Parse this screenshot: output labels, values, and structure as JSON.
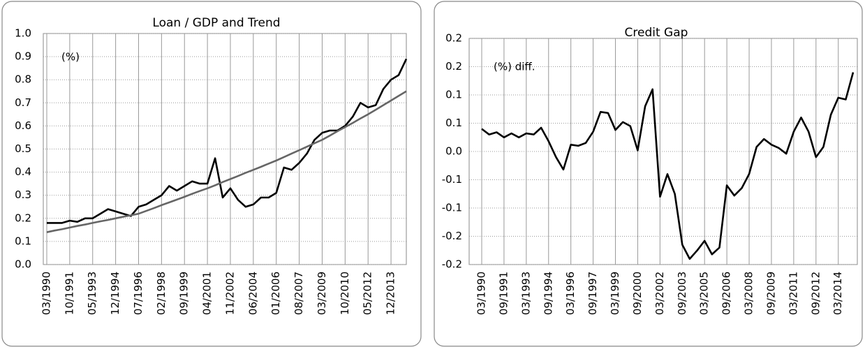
{
  "chart_data": [
    {
      "type": "line",
      "title": "Loan / GDP and  Trend",
      "annotation": "(%)",
      "categories": [
        "03/1990",
        null,
        null,
        "10/1991",
        null,
        null,
        "05/1993",
        null,
        null,
        "12/1994",
        null,
        null,
        "07/1996",
        null,
        null,
        "02/1998",
        null,
        null,
        "09/1999",
        null,
        null,
        "04/2001",
        null,
        null,
        "11/2002",
        null,
        null,
        "06/2004",
        null,
        null,
        "01/2006",
        null,
        null,
        "08/2007",
        null,
        null,
        "03/2009",
        null,
        null,
        "10/2010",
        null,
        null,
        "05/2012",
        null,
        null,
        "12/2013",
        null,
        null
      ],
      "series": [
        {
          "color": "#000000",
          "values": [
            0.18,
            0.18,
            0.18,
            0.19,
            0.185,
            0.2,
            0.2,
            0.22,
            0.24,
            0.23,
            0.22,
            0.21,
            0.25,
            0.26,
            0.28,
            0.3,
            0.34,
            0.32,
            0.34,
            0.36,
            0.35,
            0.35,
            0.46,
            0.29,
            0.33,
            0.28,
            0.25,
            0.26,
            0.29,
            0.29,
            0.31,
            0.42,
            0.41,
            0.44,
            0.48,
            0.54,
            0.57,
            0.58,
            0.58,
            0.6,
            0.64,
            0.7,
            0.68,
            0.69,
            0.76,
            0.8,
            0.82,
            0.89
          ]
        },
        {
          "color": "#666666",
          "values": [
            0.14,
            0.147,
            0.153,
            0.16,
            0.167,
            0.173,
            0.18,
            0.187,
            0.193,
            0.2,
            0.207,
            0.213,
            0.22,
            0.232,
            0.244,
            0.257,
            0.269,
            0.281,
            0.293,
            0.306,
            0.318,
            0.33,
            0.343,
            0.357,
            0.37,
            0.383,
            0.397,
            0.41,
            0.423,
            0.437,
            0.45,
            0.465,
            0.48,
            0.495,
            0.51,
            0.525,
            0.54,
            0.558,
            0.577,
            0.595,
            0.613,
            0.632,
            0.65,
            0.67,
            0.69,
            0.71,
            0.73,
            0.75
          ]
        }
      ],
      "ylim": [
        0,
        1
      ],
      "yticks": [
        {
          "value": 0,
          "label": "0.0"
        },
        0.1,
        0.2,
        0.3,
        0.4,
        0.5,
        0.6,
        0.7,
        0.8,
        0.9,
        {
          "value": 1,
          "label": "1.0"
        }
      ],
      "grid": true
    },
    {
      "type": "line",
      "title": "Credit Gap",
      "annotation": "(%) diff.",
      "categories": [
        "03/1990",
        null,
        null,
        "09/1991",
        null,
        null,
        "03/1993",
        null,
        null,
        "09/1994",
        null,
        null,
        "03/1996",
        null,
        null,
        "09/1997",
        null,
        null,
        "03/1999",
        null,
        null,
        "09/2000",
        null,
        null,
        "03/2002",
        null,
        null,
        "09/2003",
        null,
        null,
        "03/2005",
        null,
        null,
        "09/2006",
        null,
        null,
        "03/2008",
        null,
        null,
        "09/2009",
        null,
        null,
        "03/2011",
        null,
        null,
        "09/2012",
        null,
        null,
        "03/2014",
        null,
        null
      ],
      "series": [
        {
          "color": "#000000",
          "values": [
            0.04,
            0.03,
            0.034,
            0.025,
            0.032,
            0.025,
            0.032,
            0.03,
            0.042,
            0.018,
            -0.01,
            -0.032,
            0.012,
            0.01,
            0.015,
            0.035,
            0.07,
            0.068,
            0.038,
            0.052,
            0.045,
            0.002,
            0.08,
            0.11,
            -0.08,
            -0.04,
            -0.075,
            -0.165,
            -0.19,
            -0.175,
            -0.158,
            -0.182,
            -0.17,
            -0.06,
            -0.078,
            -0.065,
            -0.04,
            0.008,
            0.022,
            0.012,
            0.006,
            -0.004,
            0.035,
            0.06,
            0.035,
            -0.01,
            0.008,
            0.065,
            0.095,
            0.092,
            0.14
          ]
        }
      ],
      "ylim": [
        -0.2,
        0.2
      ],
      "yticks": [
        -0.2,
        {
          "value": -0.15,
          "label": "-0.2"
        },
        -0.1,
        {
          "value": -0.05,
          "label": "-0.1"
        },
        {
          "value": 0,
          "label": "0.0"
        },
        {
          "value": 0.05,
          "label": "0.1"
        },
        0.1,
        {
          "value": 0.15,
          "label": "0.2"
        },
        0.2
      ],
      "grid": true
    }
  ]
}
